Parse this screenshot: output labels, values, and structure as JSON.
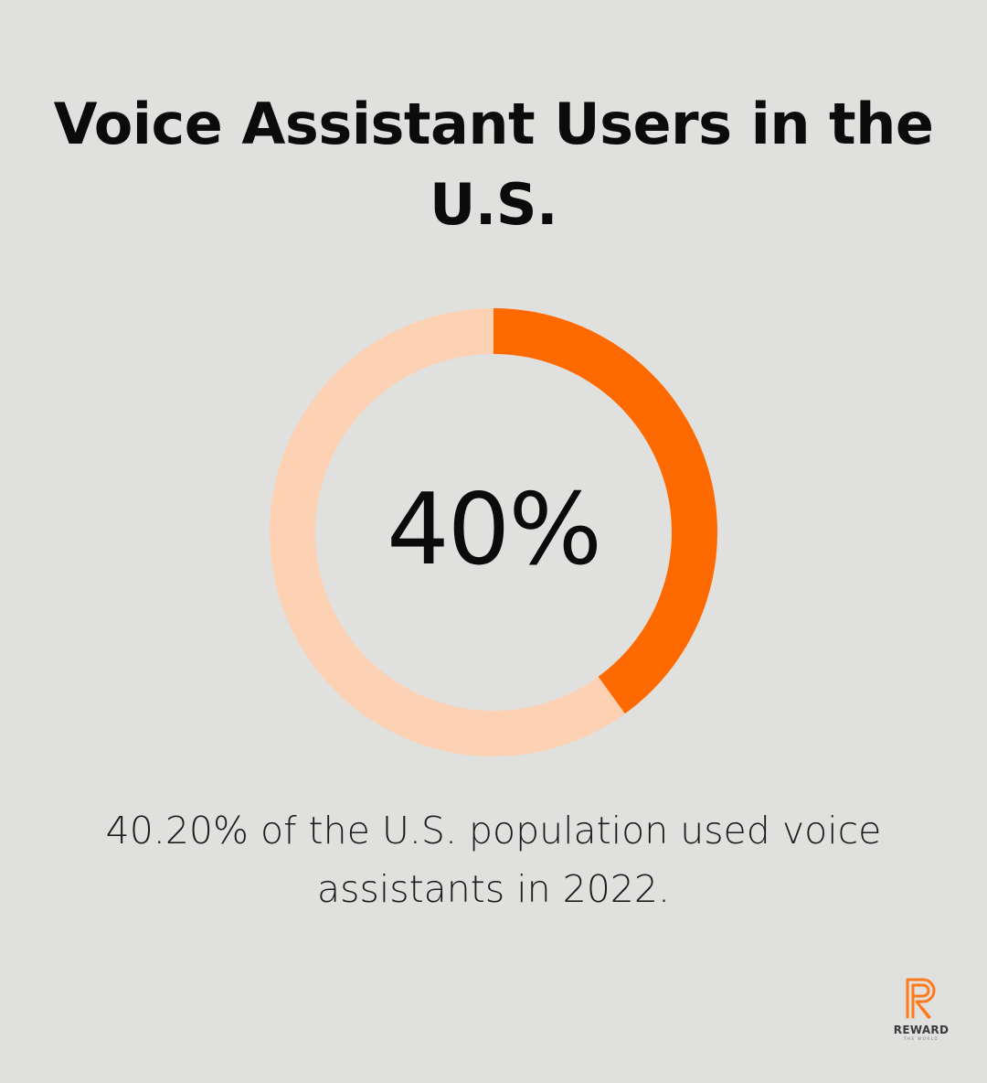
{
  "title": "Voice Assistant Users in the U.S.",
  "chart_data": {
    "type": "pie",
    "variant": "donut",
    "value_percent": 40,
    "center_label": "40%",
    "caption": "40.20% of the U.S. population used voice assistants in 2022.",
    "colors": {
      "filled": "#ff6a00",
      "track": "#fdd1b3",
      "background": "#e0e1df"
    }
  },
  "logo": {
    "name": "REWARD",
    "tagline": "THE WORLD",
    "icon": "reward-r-icon",
    "color": "#ff7a1a"
  }
}
